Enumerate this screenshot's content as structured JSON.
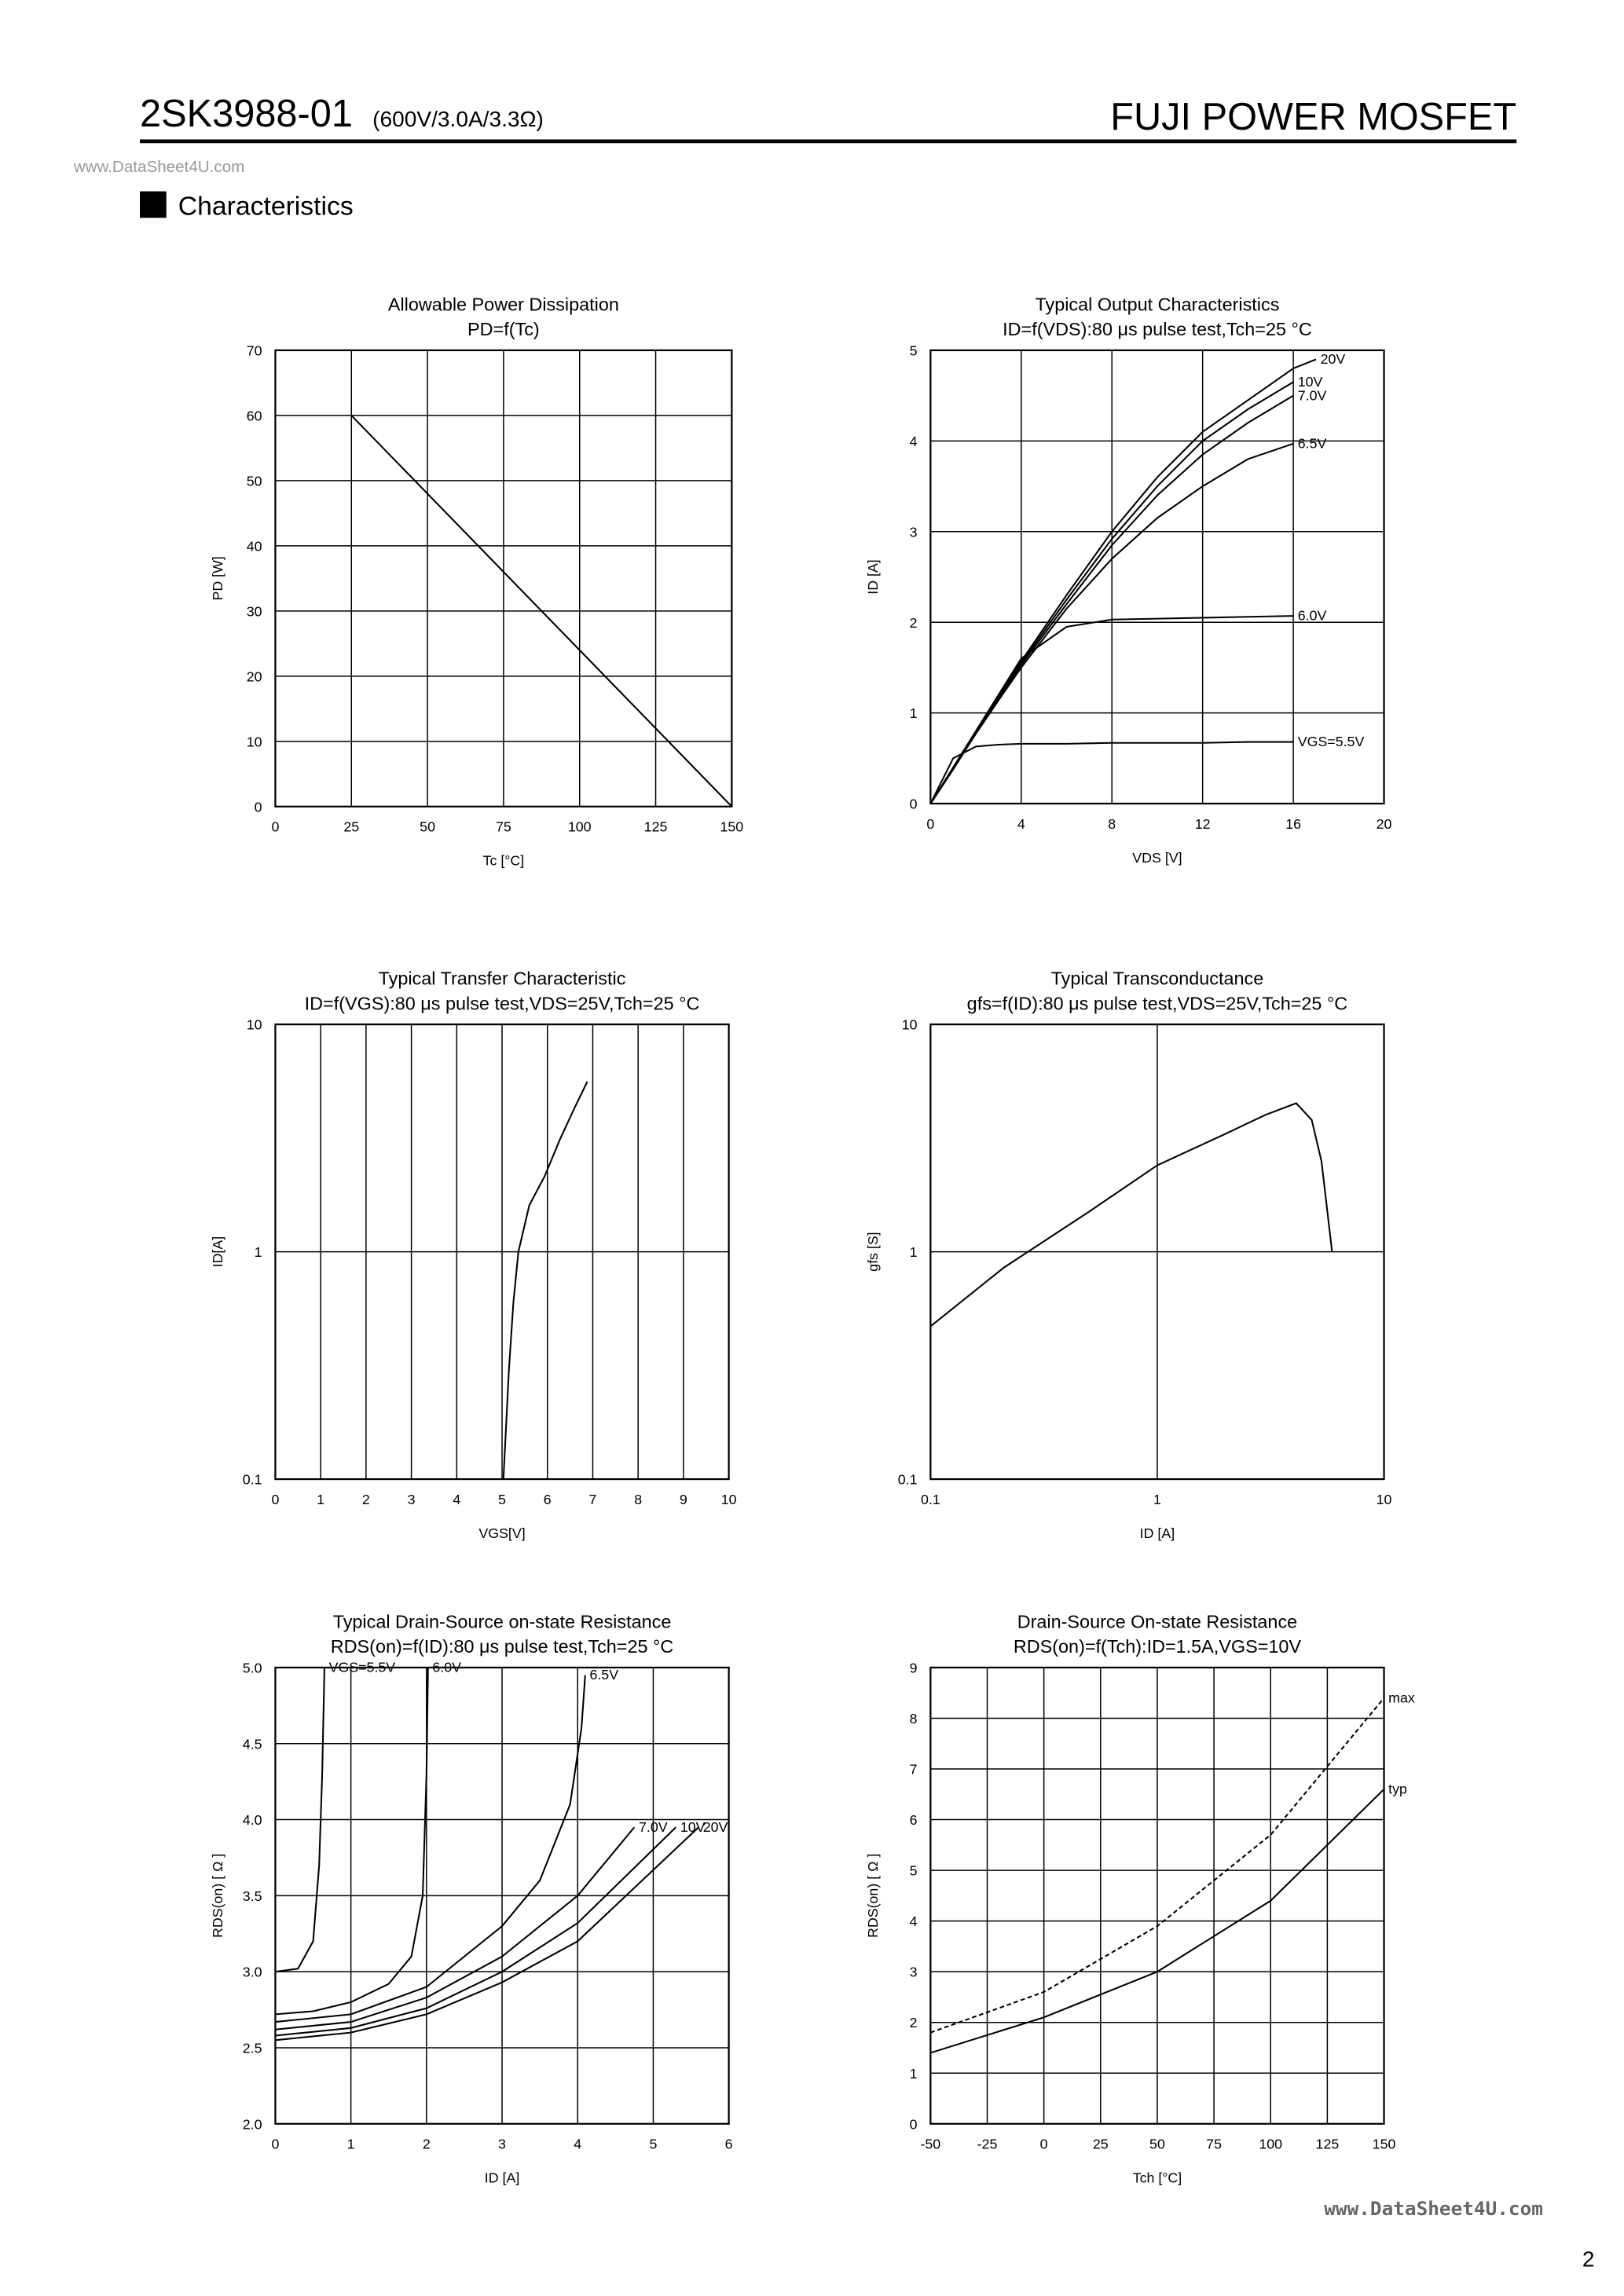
{
  "header": {
    "part": "2SK3988-01",
    "rating": "(600V/3.0A/3.3Ω)",
    "brand": "FUJI POWER MOSFET",
    "watermark": "www.DataSheet4U.com"
  },
  "section": "Characteristics",
  "footer": {
    "watermark": "www.DataSheet4U.com",
    "page": "2"
  },
  "chart_data": [
    {
      "type": "line",
      "title": "Allowable Power Dissipation",
      "subtitle": "PD=f(Tc)",
      "x_label": "Tc [°C]",
      "y_label": "PD [W]",
      "x": [
        25,
        150
      ],
      "values": [
        60,
        0
      ],
      "color": "#000000",
      "xlim": [
        0,
        150
      ],
      "xticks": [
        0,
        25,
        50,
        75,
        100,
        125,
        150
      ],
      "ylim": [
        0,
        70
      ],
      "yticks": [
        0,
        10,
        20,
        30,
        40,
        50,
        60,
        70
      ],
      "grid": true
    },
    {
      "type": "line",
      "title": "Typical Output Characteristics",
      "subtitle": "ID=f(VDS):80 μs pulse test,Tch=25 °C",
      "x_label": "VDS [V]",
      "y_label": "ID [A]",
      "x": [
        0,
        1,
        2,
        3,
        4,
        6,
        8,
        10,
        12,
        14,
        16,
        17
      ],
      "series": [
        {
          "name": "20V",
          "color": "#000000",
          "values": [
            0,
            0.38,
            0.78,
            1.18,
            1.57,
            2.3,
            3.0,
            3.6,
            4.1,
            4.45,
            4.8,
            4.9
          ]
        },
        {
          "name": "10V",
          "color": "#000000",
          "values": [
            0,
            0.38,
            0.78,
            1.17,
            1.55,
            2.25,
            2.92,
            3.5,
            4.0,
            4.35,
            4.65,
            null
          ]
        },
        {
          "name": "7.0V",
          "color": "#000000",
          "values": [
            0,
            0.38,
            0.78,
            1.16,
            1.53,
            2.2,
            2.85,
            3.4,
            3.85,
            4.2,
            4.5,
            null
          ]
        },
        {
          "name": "6.5V",
          "color": "#000000",
          "values": [
            0,
            0.38,
            0.77,
            1.14,
            1.5,
            2.15,
            2.7,
            3.15,
            3.5,
            3.8,
            3.97,
            null
          ]
        },
        {
          "name": "6.0V",
          "color": "#000000",
          "values": [
            0,
            0.4,
            0.8,
            1.2,
            1.6,
            1.95,
            2.03,
            2.04,
            2.05,
            2.06,
            2.07,
            null
          ]
        },
        {
          "name": "VGS=5.5V",
          "color": "#000000",
          "values": [
            0,
            0.5,
            0.63,
            0.65,
            0.66,
            0.66,
            0.67,
            0.67,
            0.67,
            0.68,
            0.68,
            null
          ]
        }
      ],
      "xlim": [
        0,
        20
      ],
      "xticks": [
        0,
        4,
        8,
        12,
        16,
        20
      ],
      "ylim": [
        0,
        5
      ],
      "yticks": [
        0,
        1,
        2,
        3,
        4,
        5
      ],
      "grid": true
    },
    {
      "type": "line",
      "title": "Typical Transfer Characteristic",
      "subtitle": "ID=f(VGS):80 μs pulse test,VDS=25V,Tch=25 °C",
      "x_label": "VGS[V]",
      "y_label": "ID[A]",
      "x": [
        5.03,
        5.15,
        5.25,
        5.36,
        5.6,
        5.94,
        6.27,
        6.6,
        6.88
      ],
      "values": [
        0.1,
        0.3,
        0.6,
        1,
        1.6,
        2.15,
        3.1,
        4.3,
        5.6
      ],
      "color": "#000000",
      "xlim": [
        0,
        10
      ],
      "xticks": [
        0,
        1,
        2,
        3,
        4,
        5,
        6,
        7,
        8,
        9,
        10
      ],
      "ylim": [
        0.1,
        10
      ],
      "yticks": [
        0.1,
        1,
        10
      ],
      "ylog": true,
      "grid": true
    },
    {
      "type": "line",
      "title": "Typical Transconductance",
      "subtitle": "gfs=f(ID):80 μs pulse test,VDS=25V,Tch=25 °C",
      "x_label": "ID [A]",
      "y_label": "gfs [S]",
      "x": [
        0.1,
        0.21,
        0.5,
        1,
        2,
        3,
        4.1,
        4.8,
        5.3,
        5.9
      ],
      "values": [
        0.47,
        0.85,
        1.5,
        2.4,
        3.3,
        4.0,
        4.5,
        3.8,
        2.5,
        1.0
      ],
      "color": "#000000",
      "xlim": [
        0.1,
        10
      ],
      "xticks": [
        0.1,
        1,
        10
      ],
      "xlog": true,
      "ylim": [
        0.1,
        10
      ],
      "yticks": [
        0.1,
        1,
        10
      ],
      "ylog": true,
      "grid": true
    },
    {
      "type": "line",
      "title": "Typical Drain-Source on-state Resistance",
      "subtitle": "RDS(on)=f(ID):80 μs pulse test,Tch=25 °C",
      "x_label": "ID [A]",
      "y_label": "RDS(on) [ Ω ]",
      "series": [
        {
          "name": "VGS=5.5V",
          "color": "#000000",
          "x": [
            0,
            0.3,
            0.5,
            0.58,
            0.62,
            0.65
          ],
          "values": [
            3.0,
            3.02,
            3.2,
            3.7,
            4.3,
            5.0
          ]
        },
        {
          "name": "6.0V",
          "color": "#000000",
          "x": [
            0,
            0.5,
            1,
            1.5,
            1.8,
            1.95,
            2.0,
            2.02
          ],
          "values": [
            2.72,
            2.74,
            2.8,
            2.92,
            3.1,
            3.5,
            4.3,
            5.0
          ]
        },
        {
          "name": "6.5V",
          "color": "#000000",
          "x": [
            0,
            1,
            2,
            3,
            3.5,
            3.9,
            4.05,
            4.1
          ],
          "values": [
            2.67,
            2.72,
            2.9,
            3.3,
            3.6,
            4.1,
            4.6,
            4.95
          ]
        },
        {
          "name": "7.0V",
          "color": "#000000",
          "x": [
            0,
            1,
            2,
            3,
            4,
            4.75
          ],
          "values": [
            2.62,
            2.67,
            2.83,
            3.1,
            3.5,
            3.95
          ]
        },
        {
          "name": "10V",
          "color": "#000000",
          "x": [
            0,
            1,
            2,
            3,
            4,
            5.3
          ],
          "values": [
            2.58,
            2.63,
            2.76,
            3.0,
            3.32,
            3.95
          ]
        },
        {
          "name": "20V",
          "color": "#000000",
          "x": [
            0,
            1,
            2,
            3,
            4,
            5.6
          ],
          "values": [
            2.55,
            2.6,
            2.72,
            2.93,
            3.2,
            3.95
          ]
        }
      ],
      "xlim": [
        0,
        6
      ],
      "xticks": [
        0,
        1,
        2,
        3,
        4,
        5,
        6
      ],
      "ylim": [
        2.0,
        5.0
      ],
      "yticks": [
        {
          "value": 2.0,
          "label": "2.0"
        },
        2.5,
        {
          "value": 3.0,
          "label": "3.0"
        },
        3.5,
        {
          "value": 4.0,
          "label": "4.0"
        },
        4.5,
        {
          "value": 5.0,
          "label": "5.0"
        }
      ],
      "grid": true
    },
    {
      "type": "line",
      "title": "Drain-Source On-state Resistance",
      "subtitle": "RDS(on)=f(Tch):ID=1.5A,VGS=10V",
      "x_label": "Tch [°C]",
      "y_label": "RDS(on) [ Ω ]",
      "series": [
        {
          "name": "max",
          "color": "#000000",
          "dashed": true,
          "x": [
            -50,
            0,
            50,
            100,
            150
          ],
          "values": [
            1.8,
            2.6,
            3.9,
            5.7,
            8.4
          ]
        },
        {
          "name": "typ",
          "color": "#000000",
          "x": [
            -50,
            0,
            50,
            100,
            150
          ],
          "values": [
            1.4,
            2.1,
            3.0,
            4.4,
            6.6
          ]
        }
      ],
      "xlim": [
        -50,
        150
      ],
      "xticks": [
        -50,
        -25,
        0,
        25,
        50,
        75,
        100,
        125,
        150
      ],
      "ylim": [
        0,
        9
      ],
      "yticks": [
        0,
        1,
        2,
        3,
        4,
        5,
        6,
        7,
        8,
        9
      ],
      "grid": true
    }
  ]
}
